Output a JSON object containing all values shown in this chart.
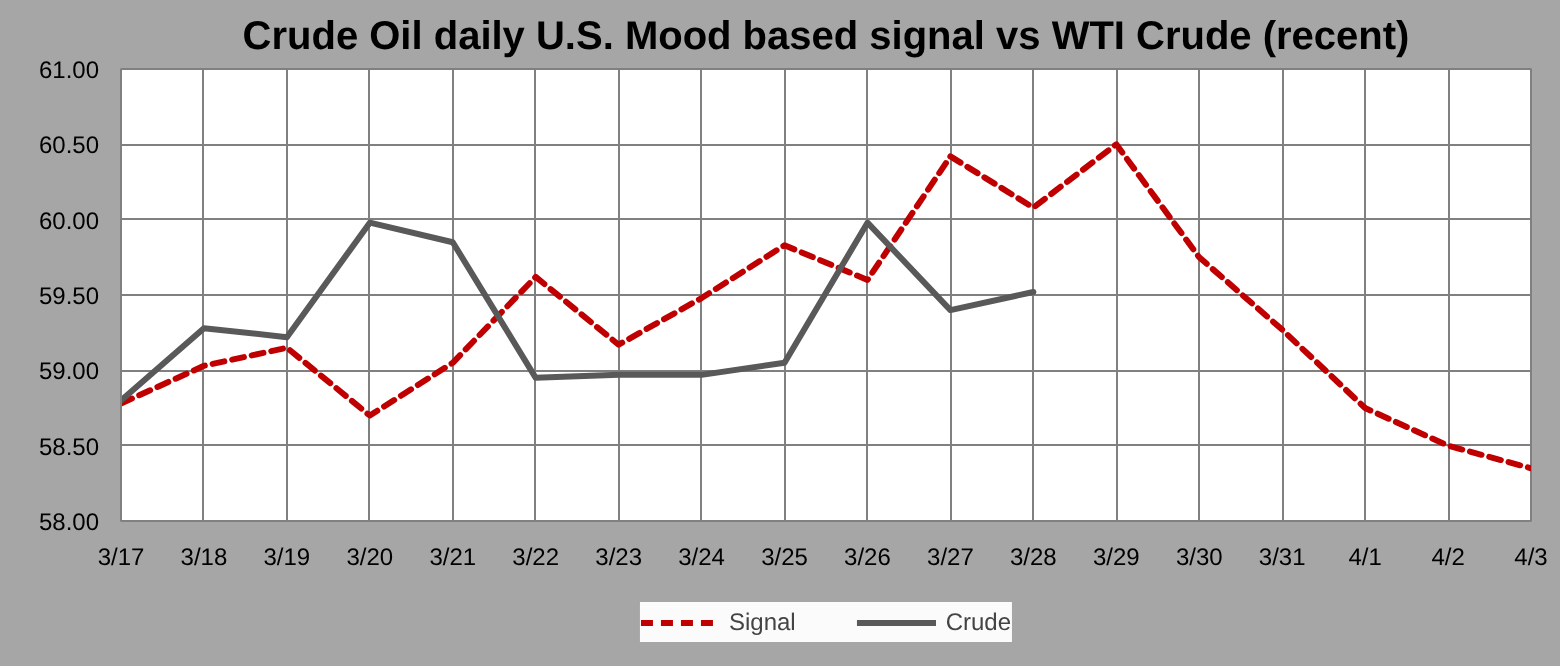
{
  "chart_data": {
    "type": "line",
    "title": "Crude Oil daily U.S. Mood based signal vs WTI Crude (recent)",
    "categories": [
      "3/17",
      "3/18",
      "3/19",
      "3/20",
      "3/21",
      "3/22",
      "3/23",
      "3/24",
      "3/25",
      "3/26",
      "3/27",
      "3/28",
      "3/29",
      "3/30",
      "3/31",
      "4/1",
      "4/2",
      "4/3"
    ],
    "series": [
      {
        "name": "Signal",
        "color": "#c00000",
        "line_style": "dashed",
        "values": [
          58.78,
          59.03,
          59.15,
          58.7,
          59.05,
          59.62,
          59.17,
          59.48,
          59.83,
          59.6,
          60.42,
          60.08,
          60.5,
          59.75,
          59.27,
          58.75,
          58.5,
          58.35
        ]
      },
      {
        "name": "Crude",
        "color": "#595959",
        "line_style": "solid",
        "values": [
          58.8,
          59.28,
          59.22,
          59.98,
          59.85,
          58.95,
          58.97,
          58.97,
          59.05,
          59.98,
          59.4,
          59.52,
          null,
          null,
          null,
          null,
          null,
          null
        ]
      }
    ],
    "ylim": [
      58,
      61
    ],
    "yticks": [
      {
        "value": 58,
        "label": "58.00"
      },
      {
        "value": 58.5,
        "label": "58.50"
      },
      {
        "value": 59,
        "label": "59.00"
      },
      {
        "value": 59.5,
        "label": "59.50"
      },
      {
        "value": 60,
        "label": "60.00"
      },
      {
        "value": 60.5,
        "label": "60.50"
      },
      {
        "value": 61,
        "label": "61.00"
      }
    ],
    "grid": true,
    "legend": "bottom",
    "marker": "none"
  }
}
